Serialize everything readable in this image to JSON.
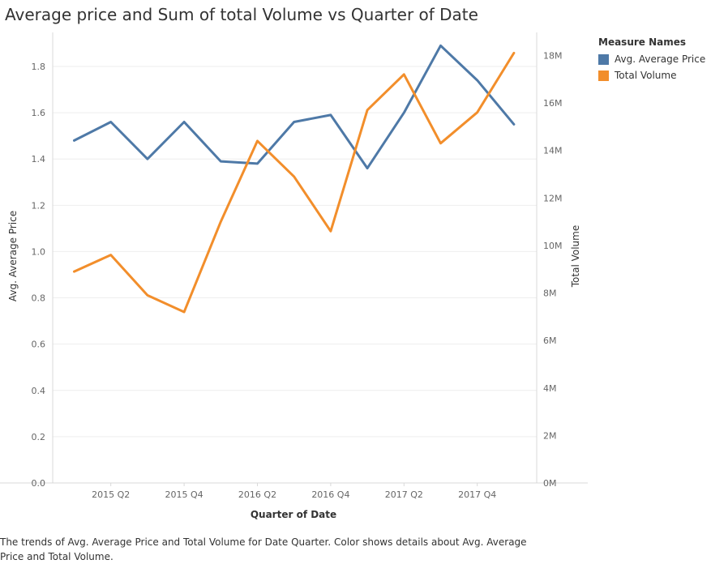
{
  "chart_data": {
    "type": "line",
    "title": "Average price and Sum of total Volume vs Quarter of Date",
    "xlabel": "Quarter of Date",
    "ylabel_left": "Avg. Average Price",
    "ylabel_right": "Total Volume",
    "categories": [
      "2015 Q1",
      "2015 Q2",
      "2015 Q3",
      "2015 Q4",
      "2016 Q1",
      "2016 Q2",
      "2016 Q3",
      "2016 Q4",
      "2017 Q1",
      "2017 Q2",
      "2017 Q3",
      "2017 Q4",
      "2018 Q1"
    ],
    "x_tick_labels": [
      "2015 Q2",
      "2015 Q4",
      "2016 Q2",
      "2016 Q4",
      "2017 Q2",
      "2017 Q4"
    ],
    "y_left": {
      "ylim": [
        0,
        1.94
      ],
      "ticks": [
        0.0,
        0.2,
        0.4,
        0.6,
        0.8,
        1.0,
        1.2,
        1.4,
        1.6,
        1.8
      ],
      "tick_labels": [
        "0.0",
        "0.2",
        "0.4",
        "0.6",
        "0.8",
        "1.0",
        "1.2",
        "1.4",
        "1.6",
        "1.8"
      ]
    },
    "y_right": {
      "ylim": [
        0,
        18.9
      ],
      "ticks": [
        0,
        2,
        4,
        6,
        8,
        10,
        12,
        14,
        16,
        18
      ],
      "tick_labels": [
        "0M",
        "2M",
        "4M",
        "6M",
        "8M",
        "10M",
        "12M",
        "14M",
        "16M",
        "18M"
      ]
    },
    "series": [
      {
        "name": "Avg. Average Price",
        "axis": "left",
        "color": "#4e79a7",
        "values": [
          1.48,
          1.56,
          1.4,
          1.56,
          1.39,
          1.38,
          1.56,
          1.59,
          1.36,
          1.6,
          1.89,
          1.74,
          1.55
        ]
      },
      {
        "name": "Total Volume",
        "axis": "right",
        "color": "#f28e2b",
        "unit": "M",
        "values": [
          8.9,
          9.6,
          7.9,
          7.2,
          11.0,
          14.4,
          12.9,
          10.6,
          15.7,
          17.2,
          14.3,
          15.6,
          18.1
        ]
      }
    ],
    "legend": {
      "title": "Measure Names",
      "placement": "right"
    },
    "grid": true
  },
  "caption": "The trends of Avg. Average Price and Total Volume for Date Quarter.  Color shows details about Avg. Average Price and Total Volume."
}
